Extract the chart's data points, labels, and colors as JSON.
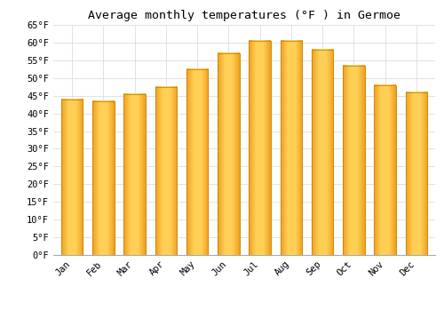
{
  "title": "Average monthly temperatures (°F ) in Germoe",
  "months": [
    "Jan",
    "Feb",
    "Mar",
    "Apr",
    "May",
    "Jun",
    "Jul",
    "Aug",
    "Sep",
    "Oct",
    "Nov",
    "Dec"
  ],
  "values": [
    44,
    43.5,
    45.5,
    47.5,
    52.5,
    57,
    60.5,
    60.5,
    58,
    53.5,
    48,
    46
  ],
  "bar_color_center": "#FFD44E",
  "bar_color_edge": "#F5A623",
  "ylim": [
    0,
    65
  ],
  "yticks": [
    0,
    5,
    10,
    15,
    20,
    25,
    30,
    35,
    40,
    45,
    50,
    55,
    60,
    65
  ],
  "background_color": "#ffffff",
  "grid_color": "#dddddd",
  "title_fontsize": 9.5,
  "tick_fontsize": 7.5,
  "bar_width": 0.7
}
